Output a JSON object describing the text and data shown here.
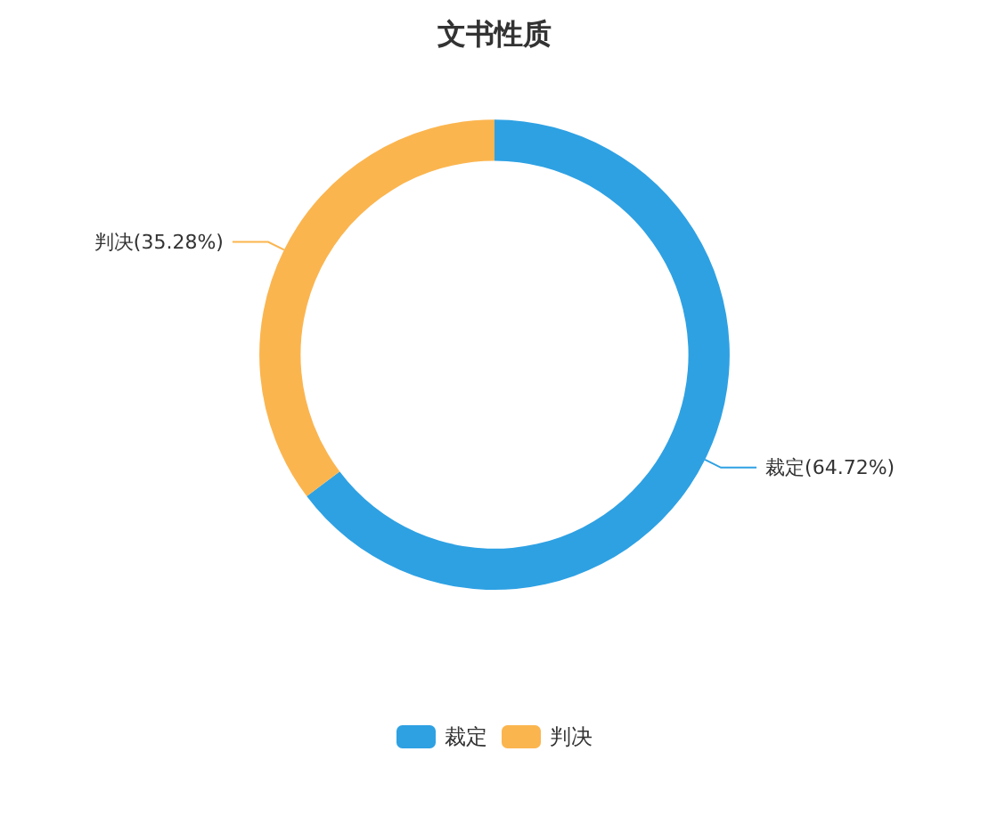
{
  "chart_data": {
    "type": "donut",
    "title": "文书性质",
    "categories": [
      "裁定",
      "判决"
    ],
    "values": [
      64.72,
      35.28
    ],
    "colors": [
      "#2ea1e3",
      "#fbb54f"
    ],
    "value_labels": [
      "裁定(64.72%)",
      "判决(35.28%)"
    ],
    "legend": "bottom"
  }
}
